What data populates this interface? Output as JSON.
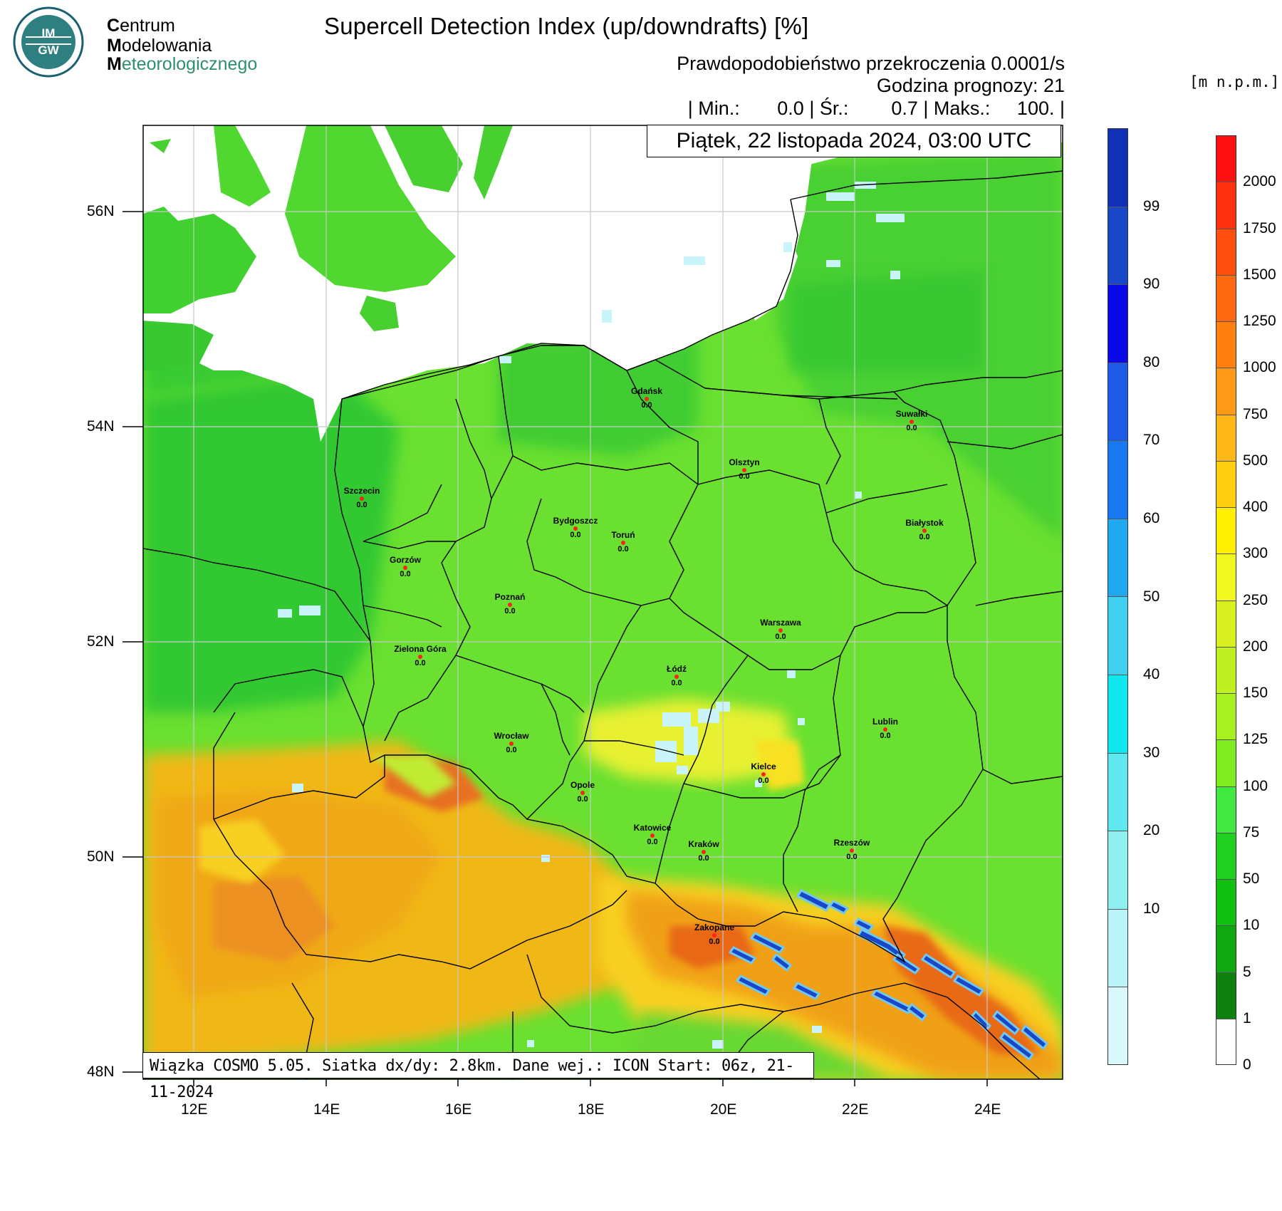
{
  "logo": {
    "badge_text_top": "IM",
    "badge_text_bottom": "GW",
    "org_line1_initial": "C",
    "org_line1_rest": "entrum",
    "org_line2_initial": "M",
    "org_line2_rest": "odelowania",
    "org_line3_initial": "M",
    "org_line3_rest": "eteorologicznego"
  },
  "header": {
    "title": "Supercell Detection Index (up/downdrafts) [%]",
    "subtitle": "Prawdopodobieństwo przekroczenia 0.0001/s",
    "forecast_hour": "Godzina prognozy: 21",
    "stats": "| Min.:       0.0 | Śr.:        0.7 | Maks.:     100. |",
    "date": "Piątek, 22 listopada 2024, 03:00 UTC"
  },
  "footer": "Wiązka COSMO 5.05. Siatka dx/dy: 2.8km. Dane wej.: ICON Start: 06z, 21-11-2024",
  "unit_label": "[m n.p.m.]",
  "axes": {
    "lat_labels": [
      "56N",
      "54N",
      "52N",
      "50N",
      "48N"
    ],
    "lon_labels": [
      "12E",
      "14E",
      "16E",
      "18E",
      "20E",
      "22E",
      "24E"
    ]
  },
  "cities": [
    {
      "name": "Gdańsk",
      "value": "0.0"
    },
    {
      "name": "Suwałki",
      "value": "0.0"
    },
    {
      "name": "Olsztyn",
      "value": "0.0"
    },
    {
      "name": "Szczecin",
      "value": "0.0"
    },
    {
      "name": "Bydgoszcz",
      "value": "0.0"
    },
    {
      "name": "Toruń",
      "value": "0.0"
    },
    {
      "name": "Białystok",
      "value": "0.0"
    },
    {
      "name": "Gorzów",
      "value": "0.0"
    },
    {
      "name": "Poznań",
      "value": "0.0"
    },
    {
      "name": "Warszawa",
      "value": "0.0"
    },
    {
      "name": "Zielona Góra",
      "value": "0.0"
    },
    {
      "name": "Łódź",
      "value": "0.0"
    },
    {
      "name": "Lublin",
      "value": "0.0"
    },
    {
      "name": "Wrocław",
      "value": "0.0"
    },
    {
      "name": "Kielce",
      "value": "0.0"
    },
    {
      "name": "Opole",
      "value": "0.0"
    },
    {
      "name": "Katowice",
      "value": "0.0"
    },
    {
      "name": "Kraków",
      "value": "0.0"
    },
    {
      "name": "Rzeszów",
      "value": "0.0"
    },
    {
      "name": "Zakopane",
      "value": "0.0"
    }
  ],
  "sdi_colorbar": {
    "labels": [
      "99",
      "90",
      "80",
      "70",
      "60",
      "50",
      "40",
      "30",
      "20",
      "10"
    ],
    "colors": [
      "#1030b8",
      "#1848c8",
      "#0a0ae8",
      "#1c5ae8",
      "#1878f0",
      "#20a8f0",
      "#40d0f0",
      "#10e8f0",
      "#60e8f0",
      "#90f0f0",
      "#b8f4f8",
      "#d8f8fc"
    ]
  },
  "terrain_colorbar": {
    "labels": [
      "2000",
      "1750",
      "1500",
      "1250",
      "1000",
      "750",
      "500",
      "400",
      "300",
      "250",
      "200",
      "150",
      "125",
      "100",
      "75",
      "50",
      "10",
      "5",
      "1",
      "0"
    ],
    "colors": [
      "#ff1010",
      "#ff3010",
      "#ff5010",
      "#ff6a10",
      "#ff8010",
      "#ff9a18",
      "#ffb818",
      "#ffd010",
      "#fff000",
      "#f0f820",
      "#d8f020",
      "#c0f020",
      "#a8f020",
      "#80ec20",
      "#40e840",
      "#20d020",
      "#10c010",
      "#10a810",
      "#108010",
      "#ffffff"
    ]
  }
}
